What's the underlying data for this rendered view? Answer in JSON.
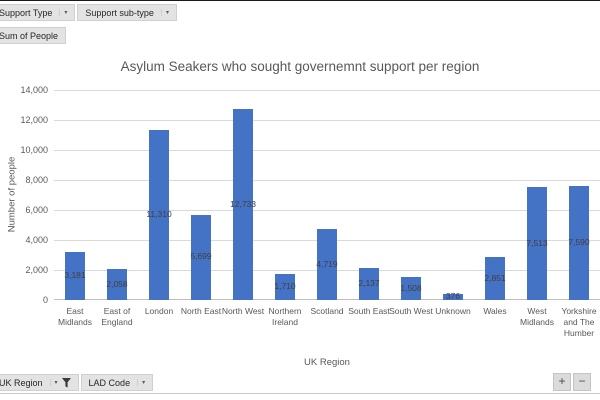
{
  "pivot_buttons": {
    "top": [
      {
        "label": "Support Type"
      },
      {
        "label": "Support sub-type"
      }
    ],
    "value": {
      "label": "Sum of People"
    },
    "bottom": [
      {
        "label": "UK Region",
        "filtered": true
      },
      {
        "label": "LAD Code",
        "filtered": false
      }
    ],
    "expand_label": "+",
    "collapse_label": "−"
  },
  "chart_data": {
    "type": "bar",
    "title": "Asylum Seakers who sought governemnt support per region",
    "xlabel": "UK Region",
    "ylabel": "Number of people",
    "categories": [
      "East Midlands",
      "East of England",
      "London",
      "North East",
      "North West",
      "Northern Ireland",
      "Scotland",
      "South East",
      "South West",
      "Unknown",
      "Wales",
      "West Midlands",
      "Yorkshire and The Humber"
    ],
    "values": [
      3181,
      2058,
      11310,
      5699,
      12733,
      1710,
      4719,
      2137,
      1508,
      376,
      2851,
      7513,
      7590
    ],
    "value_labels": [
      "3,181",
      "2,058",
      "11,310",
      "5,699",
      "12,733",
      "1,710",
      "4,719",
      "2,137",
      "1,508",
      "376",
      "2,851",
      "7,513",
      "7,590"
    ],
    "ylim": [
      0,
      14000
    ],
    "ytick_values": [
      0,
      2000,
      4000,
      6000,
      8000,
      10000,
      12000,
      14000
    ],
    "ytick_labels": [
      "0",
      "2,000",
      "4,000",
      "6,000",
      "8,000",
      "10,000",
      "12,000",
      "14,000"
    ],
    "grid": true,
    "legend": "none",
    "bar_color": "#4472C4",
    "data_label_position": "center"
  },
  "colors": {
    "bar": "#4472C4",
    "title_text": "#595959",
    "axis_text": "#595959",
    "data_label_text": "#404040",
    "gridline": "#D9D9D9",
    "button_bg": "#E3E3E3",
    "button_border": "#D0D0D0"
  }
}
